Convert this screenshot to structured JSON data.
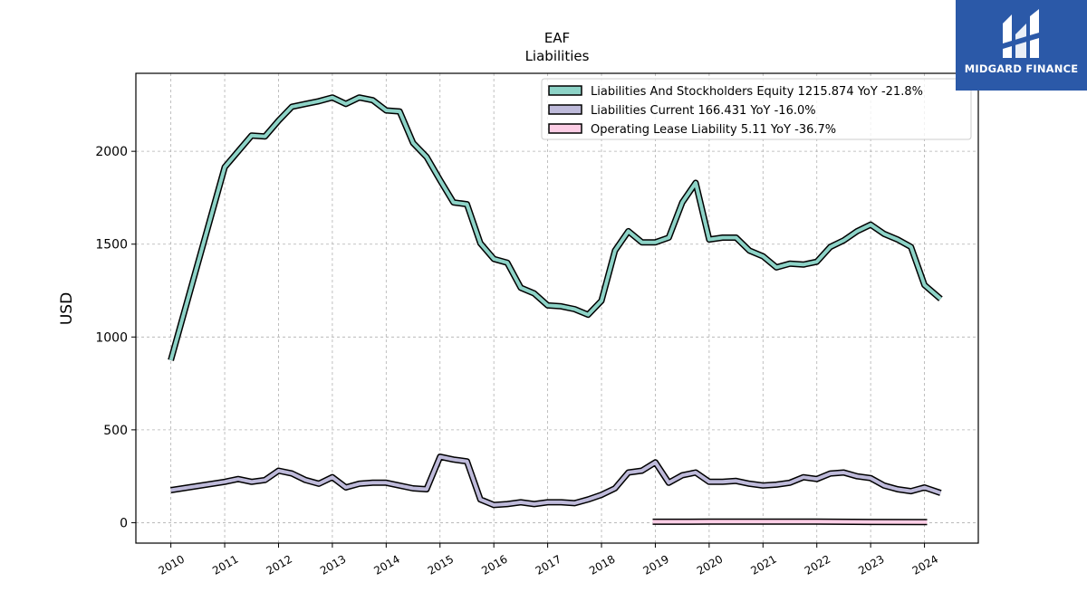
{
  "chart_data": {
    "type": "line",
    "title": "EAF",
    "subtitle": "Liabilities",
    "xlabel": "",
    "ylabel": "USD",
    "xlim": [
      2009.35,
      2025.0
    ],
    "ylim": [
      -110,
      2420
    ],
    "x_ticks": [
      "2010",
      "2011",
      "2012",
      "2013",
      "2014",
      "2015",
      "2016",
      "2017",
      "2018",
      "2019",
      "2020",
      "2021",
      "2022",
      "2023",
      "2024"
    ],
    "y_ticks": [
      "0",
      "500",
      "1000",
      "1500",
      "2000"
    ],
    "grid": true,
    "legend_position": "top-right",
    "series": [
      {
        "name": "Liabilities And Stockholders Equity  1215.874 YoY -21.8%",
        "color": "#8dd3c7",
        "points": [
          [
            2010.0,
            875
          ],
          [
            2011.0,
            1915
          ],
          [
            2011.25,
            2000
          ],
          [
            2011.5,
            2085
          ],
          [
            2011.75,
            2080
          ],
          [
            2012.0,
            2165
          ],
          [
            2012.25,
            2240
          ],
          [
            2012.5,
            2255
          ],
          [
            2012.75,
            2270
          ],
          [
            2013.0,
            2290
          ],
          [
            2013.25,
            2255
          ],
          [
            2013.5,
            2290
          ],
          [
            2013.75,
            2275
          ],
          [
            2014.0,
            2220
          ],
          [
            2014.25,
            2215
          ],
          [
            2014.5,
            2045
          ],
          [
            2014.75,
            1970
          ],
          [
            2015.0,
            1845
          ],
          [
            2015.25,
            1725
          ],
          [
            2015.5,
            1715
          ],
          [
            2015.75,
            1505
          ],
          [
            2016.0,
            1420
          ],
          [
            2016.25,
            1400
          ],
          [
            2016.5,
            1265
          ],
          [
            2016.75,
            1235
          ],
          [
            2017.0,
            1170
          ],
          [
            2017.25,
            1165
          ],
          [
            2017.5,
            1150
          ],
          [
            2017.75,
            1120
          ],
          [
            2018.0,
            1195
          ],
          [
            2018.25,
            1465
          ],
          [
            2018.5,
            1570
          ],
          [
            2018.75,
            1510
          ],
          [
            2019.0,
            1510
          ],
          [
            2019.25,
            1535
          ],
          [
            2019.5,
            1725
          ],
          [
            2019.75,
            1830
          ],
          [
            2020.0,
            1525
          ],
          [
            2020.25,
            1535
          ],
          [
            2020.5,
            1535
          ],
          [
            2020.75,
            1465
          ],
          [
            2021.0,
            1435
          ],
          [
            2021.25,
            1375
          ],
          [
            2021.5,
            1395
          ],
          [
            2021.75,
            1390
          ],
          [
            2022.0,
            1405
          ],
          [
            2022.25,
            1485
          ],
          [
            2022.5,
            1520
          ],
          [
            2022.75,
            1570
          ],
          [
            2023.0,
            1605
          ],
          [
            2023.25,
            1555
          ],
          [
            2023.5,
            1525
          ],
          [
            2023.75,
            1485
          ],
          [
            2024.0,
            1280
          ],
          [
            2024.3,
            1205
          ]
        ]
      },
      {
        "name": "Liabilities Current  166.431 YoY -16.0%",
        "color": "#bebada",
        "points": [
          [
            2010.0,
            175
          ],
          [
            2011.0,
            220
          ],
          [
            2011.25,
            235
          ],
          [
            2011.5,
            220
          ],
          [
            2011.75,
            230
          ],
          [
            2012.0,
            280
          ],
          [
            2012.25,
            265
          ],
          [
            2012.5,
            230
          ],
          [
            2012.75,
            210
          ],
          [
            2013.0,
            245
          ],
          [
            2013.25,
            190
          ],
          [
            2013.5,
            210
          ],
          [
            2013.75,
            215
          ],
          [
            2014.0,
            215
          ],
          [
            2014.25,
            200
          ],
          [
            2014.5,
            185
          ],
          [
            2014.75,
            180
          ],
          [
            2015.0,
            355
          ],
          [
            2015.25,
            340
          ],
          [
            2015.5,
            330
          ],
          [
            2015.75,
            125
          ],
          [
            2016.0,
            95
          ],
          [
            2016.25,
            100
          ],
          [
            2016.5,
            110
          ],
          [
            2016.75,
            100
          ],
          [
            2017.0,
            110
          ],
          [
            2017.25,
            110
          ],
          [
            2017.5,
            105
          ],
          [
            2017.75,
            125
          ],
          [
            2018.0,
            150
          ],
          [
            2018.25,
            185
          ],
          [
            2018.5,
            270
          ],
          [
            2018.75,
            280
          ],
          [
            2019.0,
            325
          ],
          [
            2019.25,
            215
          ],
          [
            2019.5,
            255
          ],
          [
            2019.75,
            270
          ],
          [
            2020.0,
            220
          ],
          [
            2020.25,
            220
          ],
          [
            2020.5,
            225
          ],
          [
            2020.75,
            210
          ],
          [
            2021.0,
            200
          ],
          [
            2021.25,
            205
          ],
          [
            2021.5,
            215
          ],
          [
            2021.75,
            245
          ],
          [
            2022.0,
            235
          ],
          [
            2022.25,
            265
          ],
          [
            2022.5,
            270
          ],
          [
            2022.75,
            250
          ],
          [
            2023.0,
            240
          ],
          [
            2023.25,
            200
          ],
          [
            2023.5,
            180
          ],
          [
            2023.75,
            170
          ],
          [
            2024.0,
            190
          ],
          [
            2024.3,
            160
          ]
        ]
      },
      {
        "name": "Operating Lease Liability  5.11 YoY -36.7%",
        "color": "#fccde5",
        "points": [
          [
            2018.95,
            5
          ],
          [
            2019.5,
            5
          ],
          [
            2020.0,
            6
          ],
          [
            2021.0,
            6
          ],
          [
            2022.0,
            6
          ],
          [
            2023.0,
            4
          ],
          [
            2024.05,
            3
          ]
        ]
      }
    ]
  },
  "brand": {
    "name": "MIDGARD FINANCE",
    "icon": "midgard-logo-icon",
    "background": "#2b59a8"
  }
}
